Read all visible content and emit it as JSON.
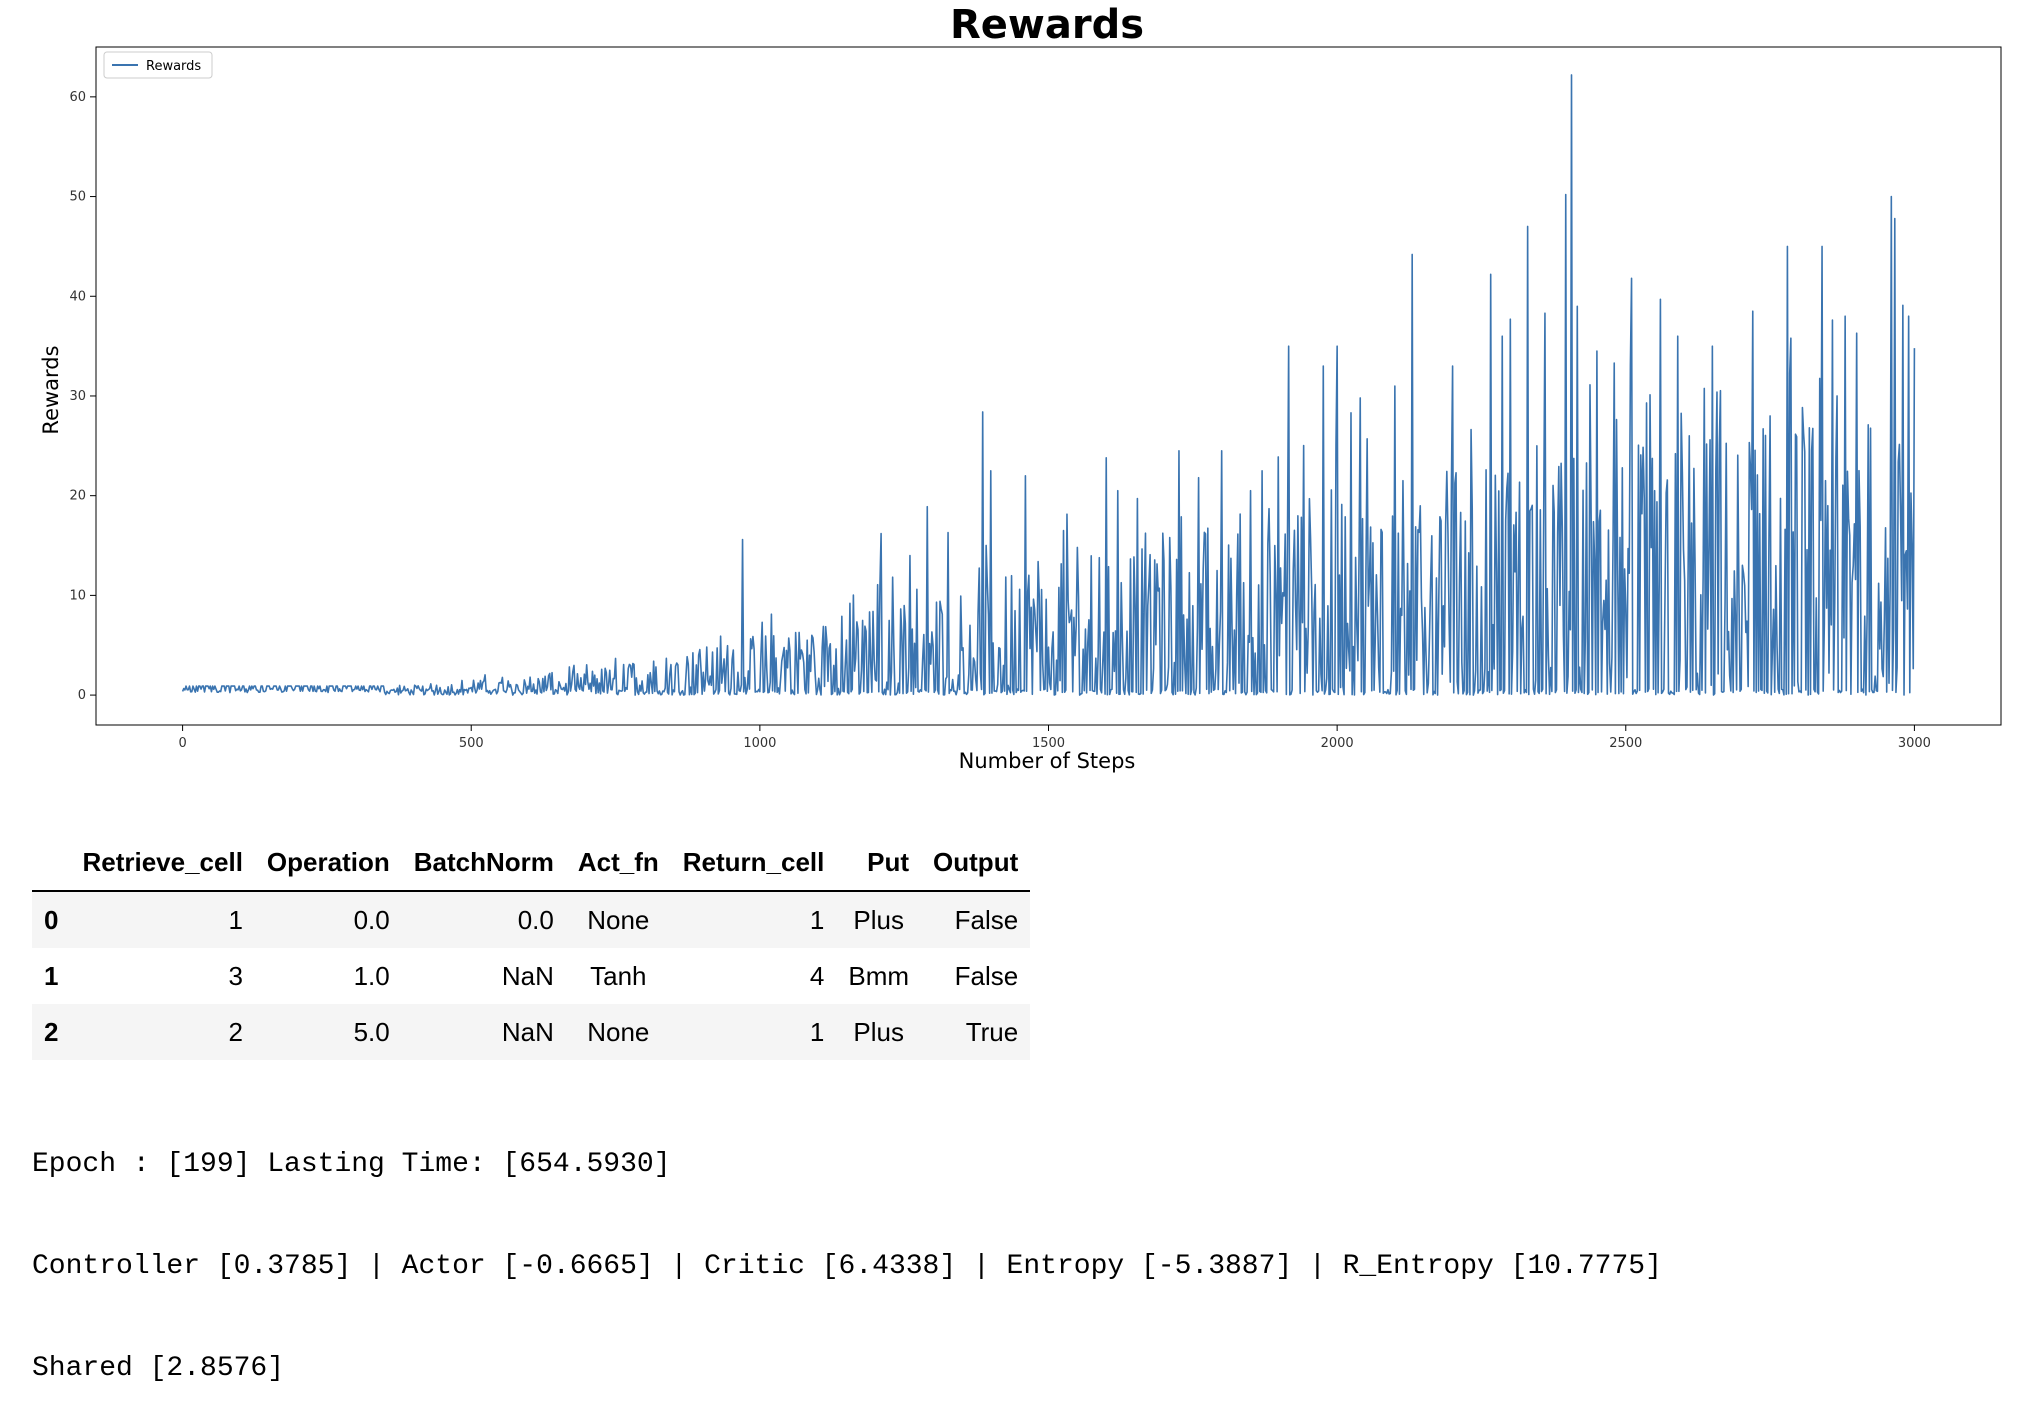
{
  "chart_data": {
    "type": "line",
    "title": "Rewards",
    "xlabel": "Number of Steps",
    "ylabel": "Rewards",
    "xlim": [
      -150,
      3150
    ],
    "ylim": [
      -3,
      65
    ],
    "xticks": [
      0,
      500,
      1000,
      1500,
      2000,
      2500,
      3000
    ],
    "yticks": [
      0,
      10,
      20,
      30,
      40,
      50,
      60
    ],
    "grid": false,
    "legend": "top-left",
    "series": [
      {
        "name": "Rewards",
        "color": "#3a74b0",
        "peaks": [
          [
            970,
            15.6
          ],
          [
            1155,
            9.2
          ],
          [
            1210,
            16.2
          ],
          [
            1260,
            14.0
          ],
          [
            1290,
            18.9
          ],
          [
            1325,
            16.3
          ],
          [
            1385,
            28.4
          ],
          [
            1400,
            22.5
          ],
          [
            1460,
            22.0
          ],
          [
            1525,
            16.5
          ],
          [
            1600,
            23.8
          ],
          [
            1620,
            20.5
          ],
          [
            1700,
            13.5
          ],
          [
            1725,
            24.5
          ],
          [
            1760,
            21.8
          ],
          [
            1800,
            24.5
          ],
          [
            1850,
            20.5
          ],
          [
            1870,
            22.5
          ],
          [
            1915,
            35.0
          ],
          [
            1975,
            33.0
          ],
          [
            2000,
            35.0
          ],
          [
            2040,
            29.8
          ],
          [
            2100,
            31.0
          ],
          [
            2130,
            44.2
          ],
          [
            2200,
            33.0
          ],
          [
            2265,
            42.2
          ],
          [
            2285,
            36.0
          ],
          [
            2300,
            37.7
          ],
          [
            2330,
            47.0
          ],
          [
            2345,
            25.0
          ],
          [
            2360,
            38.3
          ],
          [
            2395,
            50.2
          ],
          [
            2405,
            62.2
          ],
          [
            2415,
            39.0
          ],
          [
            2450,
            34.5
          ],
          [
            2480,
            33.3
          ],
          [
            2510,
            41.8
          ],
          [
            2560,
            39.7
          ],
          [
            2590,
            36.0
          ],
          [
            2610,
            26.0
          ],
          [
            2650,
            35.0
          ],
          [
            2720,
            38.5
          ],
          [
            2750,
            28.0
          ],
          [
            2780,
            45.0
          ],
          [
            2840,
            45.0
          ],
          [
            2865,
            30.0
          ],
          [
            2880,
            38.0
          ],
          [
            2900,
            36.3
          ],
          [
            2960,
            50.0
          ],
          [
            2965,
            47.8
          ],
          [
            2980,
            39.1
          ],
          [
            2990,
            38.0
          ],
          [
            3000,
            34.8
          ]
        ]
      }
    ]
  },
  "table": {
    "columns": [
      "",
      "Retrieve_cell",
      "Operation",
      "BatchNorm",
      "Act_fn",
      "Return_cell",
      "Put",
      "Output"
    ],
    "rows": [
      [
        "0",
        "1",
        "0.0",
        "0.0",
        "None",
        "1",
        "Plus",
        "False"
      ],
      [
        "1",
        "3",
        "1.0",
        "NaN",
        "Tanh",
        "4",
        "Bmm",
        "False"
      ],
      [
        "2",
        "2",
        "5.0",
        "NaN",
        "None",
        "1",
        "Plus",
        "True"
      ]
    ]
  },
  "output": {
    "line1": "Epoch : [199] Lasting Time: [654.5930]",
    "line2": "Controller [0.3785] | Actor [-0.6665] | Critic [6.4338] | Entropy [-5.3887] | R_Entropy [10.7775]",
    "line3": "Shared [2.8576]"
  }
}
